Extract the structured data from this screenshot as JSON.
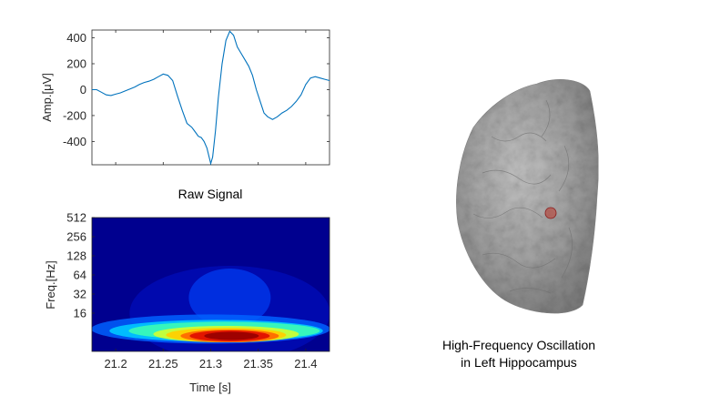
{
  "chart_data": [
    {
      "type": "line",
      "title": "Raw Signal",
      "ylabel": "Amp.[μV]",
      "xlabel": "",
      "xlim": [
        21.175,
        21.425
      ],
      "ylim": [
        -580,
        460
      ],
      "yticks": [
        400,
        200,
        0,
        -200,
        -400
      ],
      "ytick_labels": [
        "400",
        "200",
        "0",
        "-200",
        "-400"
      ],
      "grid": false,
      "line_color": "#0072BD",
      "x": [
        21.175,
        21.18,
        21.185,
        21.19,
        21.195,
        21.2,
        21.205,
        21.21,
        21.215,
        21.22,
        21.225,
        21.23,
        21.235,
        21.24,
        21.245,
        21.25,
        21.255,
        21.26,
        21.265,
        21.27,
        21.275,
        21.28,
        21.283,
        21.287,
        21.29,
        21.293,
        21.296,
        21.3,
        21.302,
        21.305,
        21.308,
        21.312,
        21.316,
        21.32,
        21.324,
        21.328,
        21.332,
        21.336,
        21.34,
        21.344,
        21.348,
        21.352,
        21.356,
        21.36,
        21.365,
        21.37,
        21.375,
        21.38,
        21.385,
        21.39,
        21.395,
        21.4,
        21.405,
        21.41,
        21.415,
        21.42,
        21.425
      ],
      "y": [
        0,
        0,
        -20,
        -40,
        -45,
        -35,
        -25,
        -10,
        5,
        20,
        40,
        55,
        65,
        80,
        100,
        120,
        110,
        70,
        -50,
        -160,
        -260,
        -290,
        -320,
        -360,
        -370,
        -400,
        -450,
        -570,
        -520,
        -320,
        -60,
        200,
        380,
        450,
        420,
        330,
        280,
        230,
        180,
        110,
        0,
        -90,
        -180,
        -210,
        -230,
        -210,
        -180,
        -160,
        -130,
        -90,
        -40,
        40,
        90,
        100,
        90,
        80,
        70
      ]
    },
    {
      "type": "heatmap",
      "title": "",
      "xlabel": "Time [s]",
      "ylabel": "Freq.[Hz]",
      "xlim": [
        21.175,
        21.425
      ],
      "xticks": [
        21.2,
        21.25,
        21.3,
        21.35,
        21.4
      ],
      "xtick_labels": [
        "21.2",
        "21.25",
        "21.3",
        "21.35",
        "21.4"
      ],
      "yscale": "log2",
      "ylim": [
        4,
        512
      ],
      "yticks": [
        512,
        256,
        128,
        64,
        32,
        16
      ],
      "ytick_labels": [
        "512",
        "256",
        "128",
        "64",
        "32",
        "16"
      ],
      "colormap": "jet",
      "peak": {
        "time": 21.32,
        "freq": 8
      },
      "spread_low_freq": {
        "time_start": 21.18,
        "time_end": 21.42,
        "freq": 9
      },
      "spread_mid_freq": {
        "time": 21.32,
        "freq": 32
      }
    }
  ],
  "brain_caption": {
    "line1": "High-Frequency Oscillation",
    "line2": "in Left Hippocampus"
  },
  "colors": {
    "background": "#ffffff",
    "axis": "#262626",
    "brain_surface": "#9a9a9a",
    "marker": "#c0392b"
  }
}
